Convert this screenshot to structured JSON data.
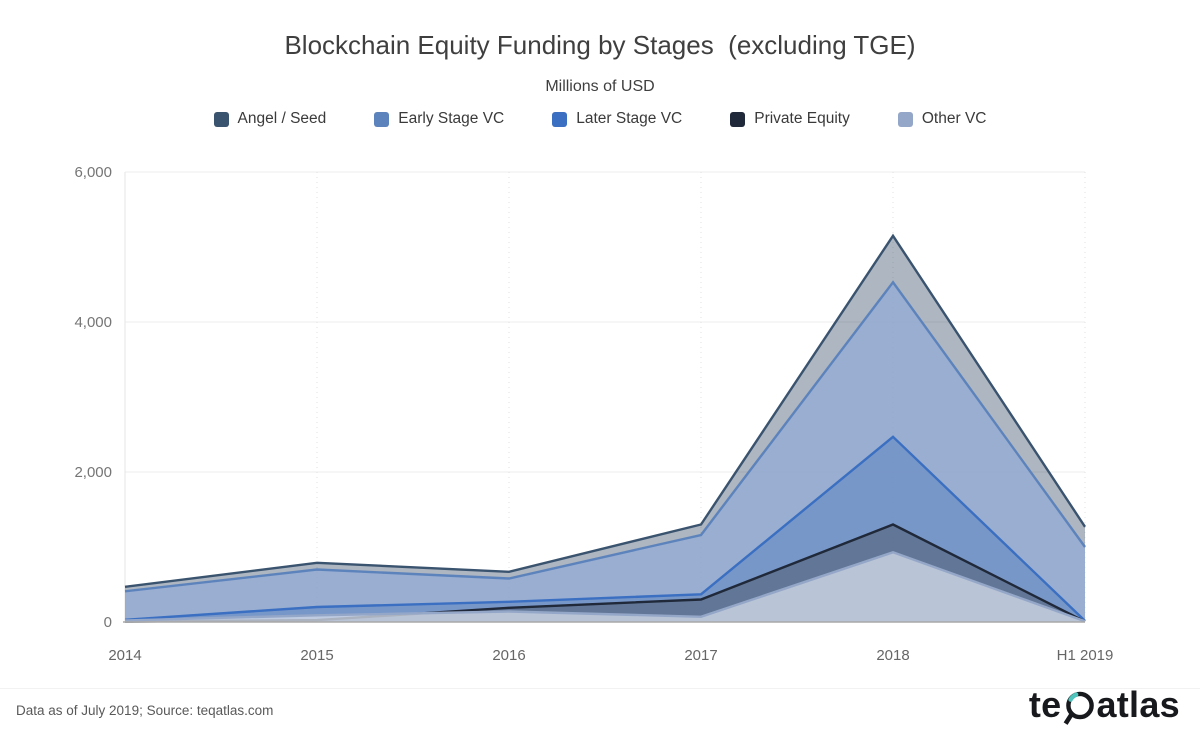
{
  "title": "Blockchain Equity Funding by Stages  (excluding TGE)",
  "subtitle": "Millions of USD",
  "legend": [
    {
      "label": "Angel / Seed",
      "color": "#3a536f"
    },
    {
      "label": "Early Stage VC",
      "color": "#5d83bc"
    },
    {
      "label": "Later Stage VC",
      "color": "#3a6fc1"
    },
    {
      "label": "Private Equity",
      "color": "#20293a"
    },
    {
      "label": "Other VC",
      "color": "#95a7c8"
    }
  ],
  "chart_data": {
    "type": "area",
    "title": "Blockchain Equity Funding by Stages  (excluding TGE)",
    "subtitle_unit": "Millions of USD",
    "x": [
      "2014",
      "2015",
      "2016",
      "2017",
      "2018",
      "H1 2019"
    ],
    "series": [
      {
        "name": "Angel / Seed",
        "color": "#3a536f",
        "fill": "rgba(59,80,108,0.42)",
        "values": [
          470,
          790,
          670,
          1300,
          5150,
          1270
        ]
      },
      {
        "name": "Early Stage VC",
        "color": "#5d83bc",
        "fill": "rgba(148,173,213,0.80)",
        "values": [
          410,
          700,
          580,
          1160,
          4530,
          1000
        ]
      },
      {
        "name": "Later Stage VC",
        "color": "#3a6fc1",
        "fill": "rgba(88,128,194,0.50)",
        "values": [
          30,
          200,
          270,
          370,
          2470,
          15
        ]
      },
      {
        "name": "Private Equity",
        "color": "#20293a",
        "fill": "rgba(70,80,90,0.45)",
        "values": [
          5,
          25,
          190,
          300,
          1300,
          5
        ]
      },
      {
        "name": "Other VC",
        "color": "#95a7c8",
        "fill": "rgba(210,218,232,0.78)",
        "values": [
          20,
          90,
          140,
          70,
          930,
          10
        ]
      }
    ],
    "ylim": [
      0,
      6000
    ],
    "yticks": [
      0,
      2000,
      4000,
      6000
    ],
    "ytick_labels": [
      "0",
      "2,000",
      "4,000",
      "6,000"
    ],
    "grid": "horizontal solid faint, vertical dotted faint",
    "legend_position": "top"
  },
  "footer": {
    "source_note": "Data as of July 2019; Source: teqatlas.com"
  },
  "logo": {
    "text_left": "te",
    "text_right": "atlas",
    "accent_color": "#4fc3bc"
  }
}
